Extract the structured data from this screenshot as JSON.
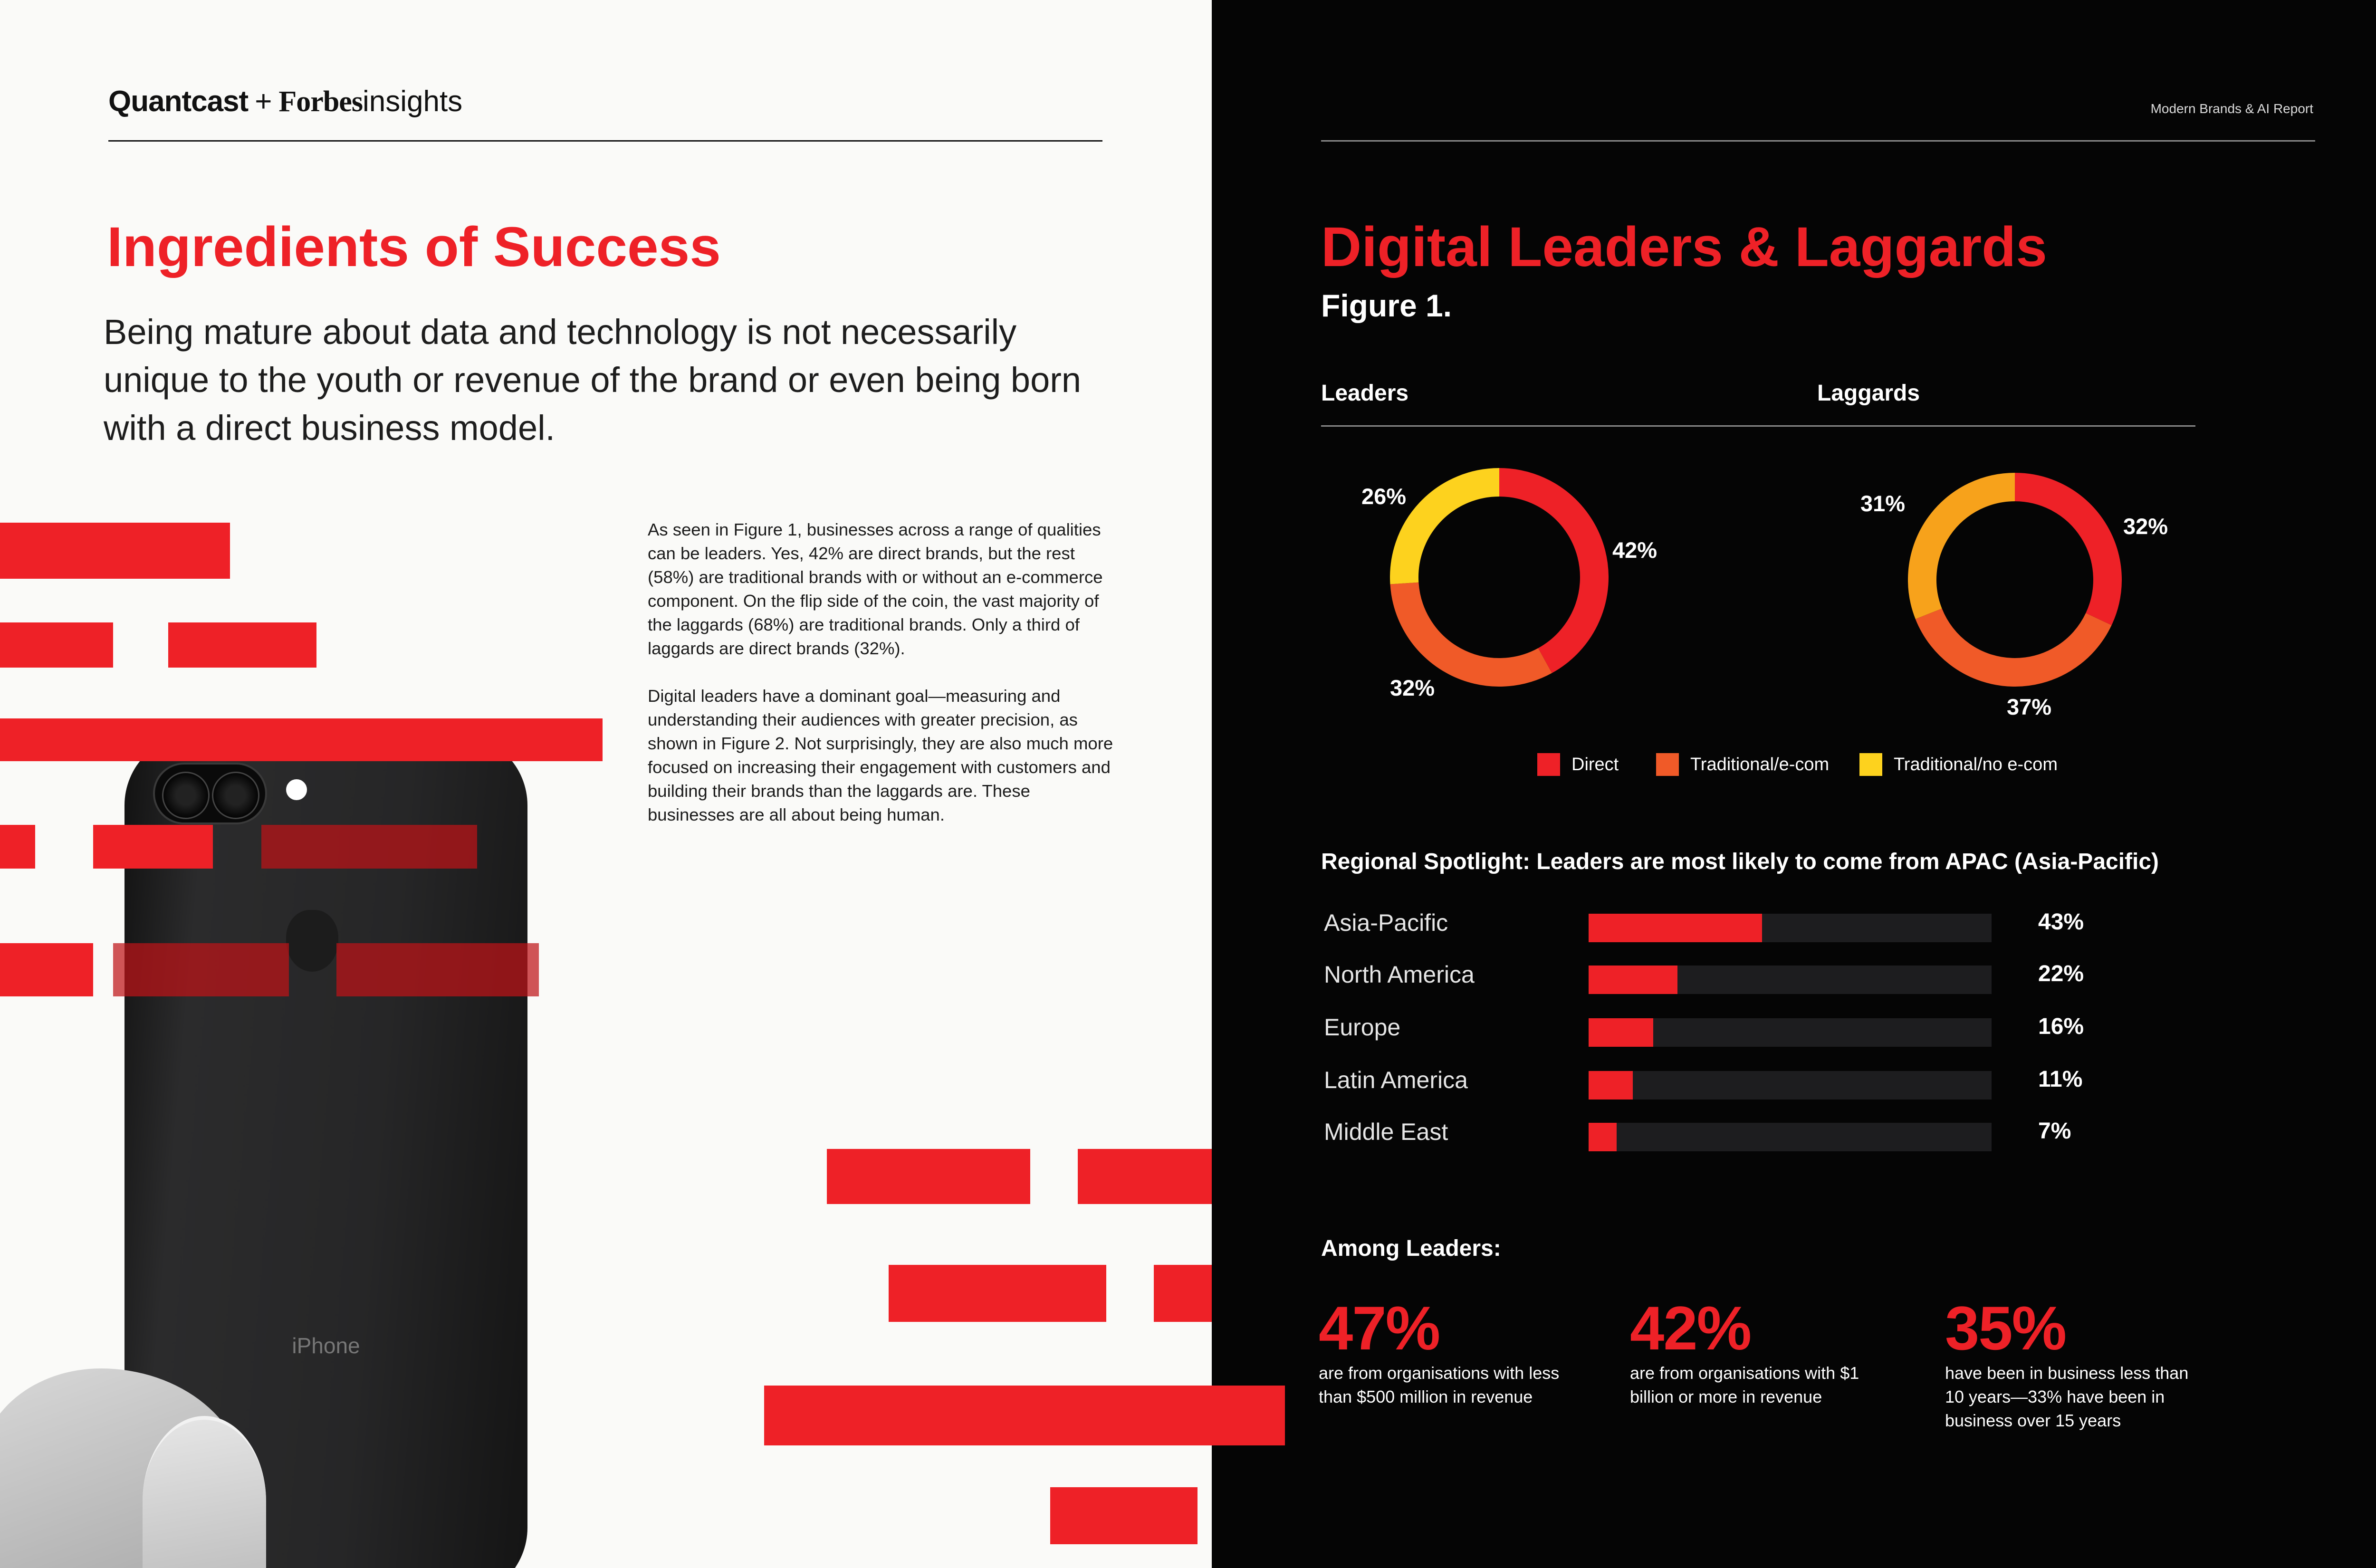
{
  "left": {
    "logo": {
      "quantcast": "Quantcast",
      "plus": "+",
      "forbes": "Forbes",
      "insights": "insights"
    },
    "title": "Ingredients of Success",
    "lead": "Being mature about data and technology is not necessarily unique to the youth or revenue of the brand or even being born with a direct business model.",
    "body": [
      "As seen in Figure 1, businesses across a range of qualities can be leaders. Yes, 42% are direct brands, but the rest (58%) are traditional brands with or without an e-commerce component. On the flip side of the coin, the vast majority of the laggards (68%) are traditional brands. Only a third of laggards are direct brands (32%).",
      "Digital leaders have a dominant goal—measuring and understanding their audiences with greater precision, as shown in Figure 2. Not surprisingly, they are also much more focused on increasing their engagement with customers and building their brands than the laggards are. These businesses are all about being human."
    ],
    "phone_text": "iPhone"
  },
  "right": {
    "report_label": "Modern Brands & AI Report",
    "title": "Digital Leaders & Laggards",
    "figure_label": "Figure 1.",
    "colors": {
      "direct": "#ee2127",
      "traditional_ecom": "#f05a28",
      "traditional_no_ecom": "#fdd21e",
      "laggard_no_ecom": "#f7a21b"
    },
    "donuts": {
      "leaders": {
        "heading": "Leaders",
        "labels": [
          "42%",
          "32%",
          "26%"
        ]
      },
      "laggards": {
        "heading": "Laggards",
        "labels": [
          "32%",
          "37%",
          "31%"
        ]
      }
    },
    "legend": [
      "Direct",
      "Traditional/e-com",
      "Traditional/no e-com"
    ],
    "regional_title": "Regional Spotlight: Leaders are most likely to come from APAC (Asia-Pacific)",
    "regions": [
      {
        "name": "Asia-Pacific",
        "pct": "43%"
      },
      {
        "name": "North America",
        "pct": "22%"
      },
      {
        "name": "Europe",
        "pct": "16%"
      },
      {
        "name": "Latin America",
        "pct": "11%"
      },
      {
        "name": "Middle East",
        "pct": "7%"
      }
    ],
    "among_title": "Among Leaders:",
    "stats": [
      {
        "num": "47%",
        "desc": "are from organisations with less than $500 million in revenue"
      },
      {
        "num": "42%",
        "desc": "are from organisations with $1 billion or more in revenue"
      },
      {
        "num": "35%",
        "desc": "have been in business less than 10 years—33% have been in business over 15 years"
      }
    ]
  },
  "chart_data": [
    {
      "type": "pie",
      "title": "Leaders",
      "categories": [
        "Direct",
        "Traditional/e-com",
        "Traditional/no e-com"
      ],
      "values": [
        42,
        32,
        26
      ]
    },
    {
      "type": "pie",
      "title": "Laggards",
      "categories": [
        "Direct",
        "Traditional/e-com",
        "Traditional/no e-com"
      ],
      "values": [
        32,
        37,
        31
      ]
    },
    {
      "type": "bar",
      "title": "Regional Spotlight: Leaders are most likely to come from APAC (Asia-Pacific)",
      "categories": [
        "Asia-Pacific",
        "North America",
        "Europe",
        "Latin America",
        "Middle East"
      ],
      "values": [
        43,
        22,
        16,
        11,
        7
      ],
      "ylim": [
        0,
        100
      ]
    }
  ]
}
